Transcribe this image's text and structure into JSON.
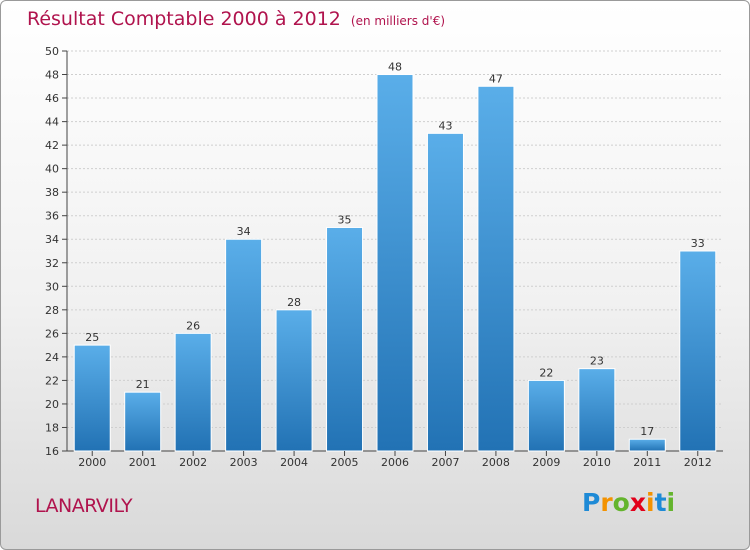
{
  "header": {
    "title": "Résultat Comptable 2000 à 2012",
    "subtitle": "(en milliers d'€)"
  },
  "commune": "LANARVILY",
  "logo": {
    "letters": [
      {
        "ch": "P",
        "color": "#1e8ad6"
      },
      {
        "ch": "r",
        "color": "#f39200"
      },
      {
        "ch": "o",
        "color": "#64b42d"
      },
      {
        "ch": "x",
        "color": "#e2001a"
      },
      {
        "ch": "i",
        "color": "#f39200"
      },
      {
        "ch": "t",
        "color": "#1e8ad6"
      },
      {
        "ch": "i",
        "color": "#64b42d"
      }
    ]
  },
  "colors": {
    "bar_top": "#5aaee9",
    "bar_bottom": "#2272b4",
    "bar_stroke": "#ffffff",
    "axis": "#444444",
    "grid": "#cfcfcf"
  },
  "chart_data": {
    "type": "bar",
    "title": "Résultat Comptable 2000 à 2012",
    "subtitle": "(en milliers d'€)",
    "xlabel": "",
    "ylabel": "",
    "categories": [
      "2000",
      "2001",
      "2002",
      "2003",
      "2004",
      "2005",
      "2006",
      "2007",
      "2008",
      "2009",
      "2010",
      "2011",
      "2012"
    ],
    "values": [
      25,
      21,
      26,
      34,
      28,
      35,
      48,
      43,
      47,
      22,
      23,
      17,
      33
    ],
    "ylim": [
      16,
      50
    ],
    "yticks": [
      16,
      18,
      20,
      22,
      24,
      26,
      28,
      30,
      32,
      34,
      36,
      38,
      40,
      42,
      44,
      46,
      48,
      50
    ],
    "grid": true,
    "data_labels": true
  }
}
